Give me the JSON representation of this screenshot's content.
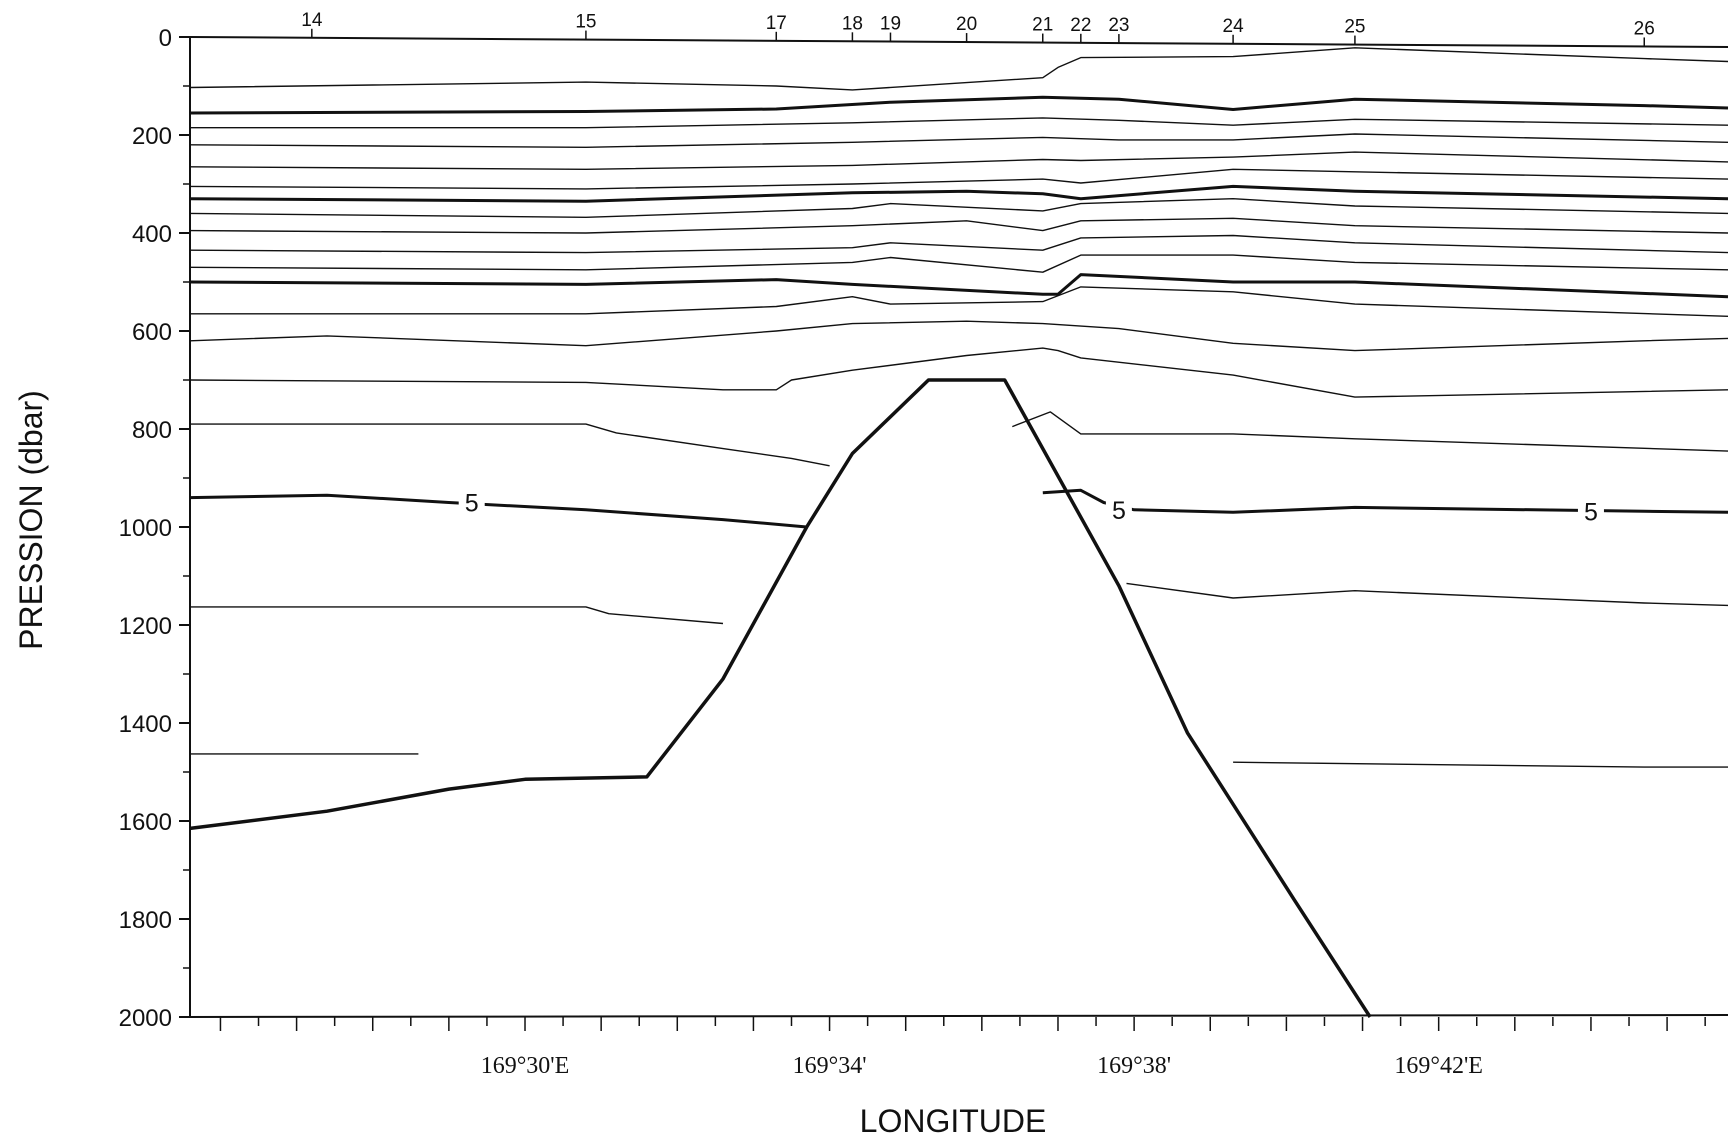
{
  "chart_data": {
    "type": "line",
    "subtype": "vertical-section-contour",
    "title": "",
    "xlabel": "LONGITUDE",
    "ylabel": "PRESSION (dbar)",
    "x_unit": "longitude minutes east of 169°E",
    "xlim": [
      25.6,
      45.8
    ],
    "ylim": [
      2000,
      0
    ],
    "y_ticks": [
      0,
      200,
      400,
      600,
      800,
      1000,
      1200,
      1400,
      1600,
      1800,
      2000
    ],
    "y_tick_labels": [
      "0",
      "200",
      "400",
      "600",
      "800",
      "1000",
      "1200",
      "1400",
      "1600",
      "1800",
      "2000"
    ],
    "x_ticks": [
      30,
      34,
      38,
      42
    ],
    "x_tick_labels": [
      "169°30'E",
      "169°34'",
      "169°38'",
      "169°42'E"
    ],
    "stations": [
      {
        "label": "14",
        "x": 27.2
      },
      {
        "label": "15",
        "x": 30.8
      },
      {
        "label": "17",
        "x": 33.3
      },
      {
        "label": "18",
        "x": 34.3
      },
      {
        "label": "19",
        "x": 34.8
      },
      {
        "label": "20",
        "x": 35.8
      },
      {
        "label": "21",
        "x": 36.8
      },
      {
        "label": "22",
        "x": 37.3
      },
      {
        "label": "23",
        "x": 37.8
      },
      {
        "label": "24",
        "x": 39.3
      },
      {
        "label": "25",
        "x": 40.9
      },
      {
        "label": "26",
        "x": 44.7
      }
    ],
    "contour_label_text": "5",
    "contour_label_positions": [
      {
        "x": 29.3,
        "y": 950
      },
      {
        "x": 37.8,
        "y": 965
      },
      {
        "x": 44.0,
        "y": 968
      }
    ],
    "bathymetry": {
      "x": [
        25.6,
        27.4,
        29.0,
        30.0,
        31.6,
        32.6,
        33.7,
        34.3,
        35.3,
        36.3,
        37.8,
        38.7,
        40.1,
        41.1
      ],
      "y": [
        1615,
        1580,
        1535,
        1515,
        1510,
        1310,
        1000,
        850,
        700,
        700,
        1120,
        1420,
        1760,
        2000
      ]
    },
    "contours": [
      {
        "bold": false,
        "x": [
          25.6,
          30.8,
          33.3,
          34.3,
          35.8,
          36.8,
          37.0,
          37.3,
          39.3,
          40.9,
          44.7,
          45.8
        ],
        "y": [
          103,
          92,
          100,
          108,
          93,
          83,
          62,
          42,
          40,
          22,
          44,
          50
        ]
      },
      {
        "bold": true,
        "x": [
          25.6,
          30.8,
          33.3,
          34.8,
          36.8,
          37.8,
          39.3,
          40.9,
          44.7,
          45.8
        ],
        "y": [
          155,
          152,
          147,
          133,
          123,
          127,
          148,
          127,
          140,
          145
        ]
      },
      {
        "bold": false,
        "x": [
          25.6,
          30.8,
          34.3,
          36.8,
          37.8,
          39.3,
          40.9,
          45.8
        ],
        "y": [
          185,
          185,
          175,
          165,
          170,
          180,
          168,
          180
        ]
      },
      {
        "bold": false,
        "x": [
          25.6,
          30.8,
          34.3,
          36.8,
          37.8,
          39.3,
          40.9,
          45.8
        ],
        "y": [
          220,
          225,
          215,
          205,
          210,
          210,
          198,
          215
        ]
      },
      {
        "bold": false,
        "x": [
          25.6,
          30.8,
          34.3,
          36.8,
          37.3,
          39.3,
          40.9,
          45.8
        ],
        "y": [
          265,
          270,
          262,
          250,
          252,
          245,
          235,
          255
        ]
      },
      {
        "bold": false,
        "x": [
          25.6,
          30.8,
          34.3,
          36.8,
          37.3,
          39.3,
          40.9,
          45.8
        ],
        "y": [
          305,
          310,
          300,
          290,
          298,
          270,
          275,
          290
        ]
      },
      {
        "bold": true,
        "x": [
          25.6,
          30.8,
          34.3,
          35.8,
          36.8,
          37.3,
          39.3,
          40.9,
          45.8
        ],
        "y": [
          330,
          335,
          318,
          315,
          320,
          330,
          305,
          315,
          330
        ]
      },
      {
        "bold": false,
        "x": [
          25.6,
          30.8,
          34.3,
          34.8,
          36.8,
          37.3,
          39.3,
          40.9,
          45.8
        ],
        "y": [
          360,
          368,
          350,
          340,
          355,
          340,
          330,
          345,
          360
        ]
      },
      {
        "bold": false,
        "x": [
          25.6,
          30.8,
          34.3,
          35.8,
          36.8,
          37.3,
          39.3,
          40.9,
          45.8
        ],
        "y": [
          395,
          400,
          385,
          375,
          395,
          375,
          370,
          385,
          400
        ]
      },
      {
        "bold": false,
        "x": [
          25.6,
          30.8,
          34.3,
          34.8,
          36.8,
          37.3,
          39.3,
          40.9,
          45.8
        ],
        "y": [
          435,
          440,
          430,
          420,
          435,
          410,
          405,
          420,
          440
        ]
      },
      {
        "bold": false,
        "x": [
          25.6,
          30.8,
          34.3,
          34.8,
          36.8,
          37.3,
          39.3,
          40.9,
          45.8
        ],
        "y": [
          470,
          475,
          460,
          450,
          480,
          445,
          445,
          460,
          475
        ]
      },
      {
        "bold": true,
        "x": [
          25.6,
          30.8,
          33.3,
          34.3,
          36.8,
          37.0,
          37.3,
          39.3,
          40.9,
          45.8
        ],
        "y": [
          500,
          505,
          495,
          505,
          525,
          525,
          485,
          500,
          500,
          530
        ]
      },
      {
        "bold": false,
        "x": [
          25.6,
          30.8,
          33.3,
          34.3,
          34.8,
          36.8,
          37.3,
          39.3,
          40.9,
          45.8
        ],
        "y": [
          565,
          565,
          550,
          530,
          545,
          540,
          510,
          520,
          545,
          570
        ]
      },
      {
        "bold": false,
        "x": [
          25.6,
          27.4,
          30.8,
          33.3,
          34.3,
          35.8,
          36.8,
          37.8,
          39.3,
          40.9,
          44.7,
          45.8
        ],
        "y": [
          620,
          610,
          630,
          600,
          585,
          580,
          585,
          595,
          625,
          640,
          620,
          615
        ]
      },
      {
        "bold": false,
        "x": [
          25.6,
          30.8,
          32.6,
          33.3,
          33.5,
          34.3,
          35.8,
          36.8,
          37.0,
          37.3,
          39.3,
          40.9,
          45.8
        ],
        "y": [
          700,
          705,
          720,
          720,
          700,
          680,
          650,
          635,
          640,
          655,
          690,
          735,
          720
        ]
      },
      {
        "bold": false,
        "x": [
          25.6,
          30.8,
          31.2,
          32.6,
          33.5,
          34.0
        ],
        "y": [
          790,
          790,
          808,
          840,
          860,
          875
        ]
      },
      {
        "bold": false,
        "x": [
          36.4,
          36.9,
          37.3,
          39.3,
          40.9,
          45.8
        ],
        "y": [
          795,
          765,
          810,
          810,
          820,
          845
        ]
      },
      {
        "bold": true,
        "x": [
          25.6,
          27.4,
          29.0,
          30.8,
          32.6,
          33.7
        ],
        "y": [
          940,
          935,
          950,
          965,
          985,
          1000
        ]
      },
      {
        "bold": true,
        "x": [
          36.8,
          37.3,
          37.6,
          38.0,
          39.3,
          40.9,
          44.7,
          45.8
        ],
        "y": [
          930,
          925,
          950,
          965,
          970,
          960,
          968,
          970
        ]
      },
      {
        "bold": false,
        "x": [
          25.6,
          30.8,
          31.1,
          32.6
        ],
        "y": [
          1163,
          1163,
          1177,
          1197
        ]
      },
      {
        "bold": false,
        "x": [
          37.9,
          39.3,
          40.9,
          44.7,
          45.8
        ],
        "y": [
          1115,
          1145,
          1130,
          1155,
          1160
        ]
      },
      {
        "bold": false,
        "x": [
          25.6,
          28.6
        ],
        "y": [
          1463,
          1463
        ]
      },
      {
        "bold": false,
        "x": [
          39.3,
          44.7,
          45.8
        ],
        "y": [
          1480,
          1490,
          1490
        ]
      }
    ]
  }
}
